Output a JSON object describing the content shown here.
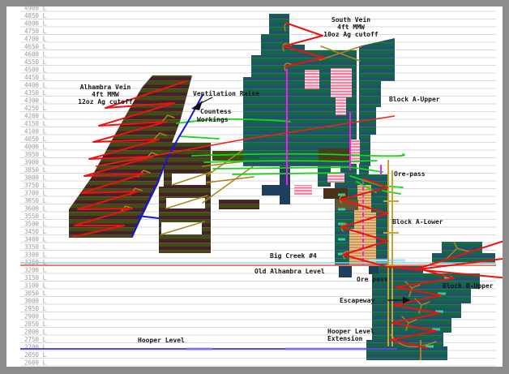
{
  "diagram": {
    "type": "mine-longitudinal-section",
    "axis": {
      "unit_suffix": "L",
      "levels": [
        "4900 L",
        "4850 L",
        "4800 L",
        "4750 L",
        "4700 L",
        "4650 L",
        "4600 L",
        "4550 L",
        "4500 L",
        "4450 L",
        "4400 L",
        "4350 L",
        "4300 L",
        "4250 L",
        "4200 L",
        "4150 L",
        "4100 L",
        "4050 L",
        "4000 L",
        "3950 L",
        "3900 L",
        "3850 L",
        "3800 L",
        "3750 L",
        "3700 L",
        "3650 L",
        "3600 L",
        "3550 L",
        "3500 L",
        "3450 L",
        "3400 L",
        "3350 L",
        "3300 L",
        "3250 L",
        "3200 L",
        "3150 L",
        "3100 L",
        "3050 L",
        "3000 L",
        "2950 L",
        "2900 L",
        "2850 L",
        "2800 L",
        "2750 L",
        "2700 L",
        "2650 L",
        "2600 L"
      ]
    },
    "annotations": {
      "south_vein": {
        "line1": "South Vein",
        "line2": "4ft MMW",
        "line3": "10oz Ag cutoff"
      },
      "alhambra_vein": {
        "line1": "Alhambra Vein",
        "line2": "4ft MMW",
        "line3": "12oz Ag cutoff"
      },
      "ventilation_raise": "Ventilation Raise",
      "countess": {
        "line1": "Countess",
        "line2": "Workings"
      },
      "block_a_upper": "Block A-Upper",
      "ore_pass_upper": "Ore-pass",
      "block_a_lower": "Block A-Lower",
      "big_creek": "Big Creek #4",
      "old_alhambra_level": "Old Alhambra Level",
      "ore_pass_lower": "Ore pass",
      "block_b_upper": "Block B-Upper",
      "escapeway": "Escapeway",
      "hooper_ext": {
        "line1": "Hooper Level",
        "line2": "Extension"
      },
      "hooper_level": "Hooper Level"
    },
    "colors": {
      "frame_gray": "#8c8c8c",
      "background": "#ffffff",
      "gridline": "#d9d9d9",
      "axis_text": "#9b9b9b",
      "block_navy": "#24506b",
      "block_green": "#0f6a42",
      "vein_olive": "#3f4d13",
      "vein_maroon": "#47202c",
      "stope_pink": "#f27f9f",
      "stope_orange": "#f0c08a",
      "stope_red_zigzag": "#ee1111",
      "old_alhambra_line": "#ea7058",
      "big_creek_line": "#8cd0ec",
      "hooper_line": "#5a48d8",
      "countess_green": "#17d617",
      "ore_pass_yellow": "#c8a233",
      "raise_blue": "#1515e0",
      "magenta_raise": "#f020f0",
      "tan_workings": "#a9841e"
    }
  }
}
